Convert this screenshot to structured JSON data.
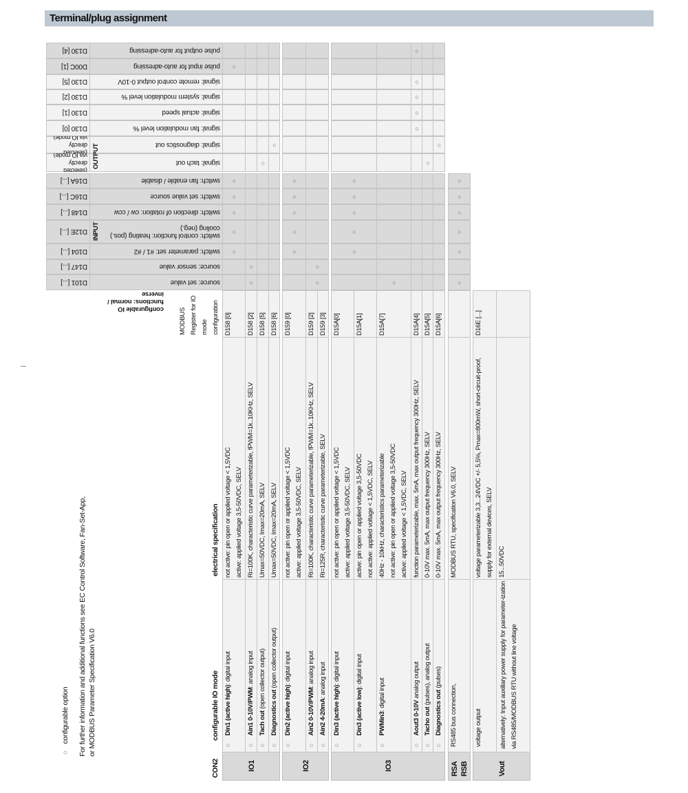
{
  "title": "Terminal/plug assignment",
  "legend": {
    "option_symbol": "○",
    "option_text": "configurable  option",
    "info_lines": [
      "For further information and additional functions see EC Control Software, Fan-Set-App,",
      "or MODBUS Parameter Specification V6.0"
    ]
  },
  "colors": {
    "title_bar": "#bdc8d3",
    "header_gray": "#d9d9d9",
    "cell_light": "#f2f2f2"
  },
  "upper": {
    "functions_header": [
      "configurable IO",
      "functions: normal /",
      "inverse"
    ],
    "output_label": "OUTPUT",
    "input_label": "INPUT",
    "rows": [
      {
        "register": "D130 [4]",
        "label": "pulse output for auto-adressing",
        "shade": "dark",
        "marks": [
          "aout3"
        ]
      },
      {
        "register": "D00C [1]",
        "label": "pulse input for auto-adressing",
        "shade": "dark",
        "marks": [
          "din1"
        ]
      },
      {
        "register": "D130 [5]",
        "label": "signal: remote control output 0-10V",
        "shade": "light",
        "marks": [
          "aout3"
        ]
      },
      {
        "register": "D130 [2]",
        "label": "signal: system modulation level %",
        "shade": "light",
        "marks": [
          "aout3"
        ]
      },
      {
        "register": "D130 [1]",
        "label": "signal: actual speed",
        "shade": "light",
        "marks": [
          "aout3"
        ]
      },
      {
        "register": "D130 [0]",
        "label": "signal: fan modulation level %",
        "shade": "light",
        "marks": [
          "aout3"
        ]
      },
      {
        "register": "(selected directly via IO mode)",
        "label": "signal: diagnostics out",
        "shade": "light",
        "marks": [
          "diag1",
          "diag3"
        ]
      },
      {
        "register": "(selected directly via IO mode)",
        "label": "signal: tach out",
        "shade": "light",
        "marks": [
          "tach1",
          "tacho3"
        ]
      },
      {
        "register": "D16A [...]",
        "label": "switch: fan enable / disable",
        "shade": "dark",
        "marks": [
          "din1",
          "din2",
          "din3",
          "rs485"
        ]
      },
      {
        "register": "D16C [...]",
        "label": "switch: set value source",
        "shade": "dark",
        "marks": [
          "din1",
          "din2",
          "din3",
          "rs485"
        ]
      },
      {
        "register": "D148 [...]",
        "label": "switch: direction of rotation: cw / ccw",
        "shade": "dark",
        "marks": [
          "din1",
          "din2",
          "din3",
          "rs485"
        ]
      },
      {
        "register": "D12E [...]",
        "label": "switch: control function: heating (pos.) cooling (neg.)",
        "shade": "dark",
        "marks": [
          "din1",
          "din2",
          "din3",
          "rs485"
        ]
      },
      {
        "register": "D104 [...]",
        "label": "switch: parameter set: #1 / #2",
        "shade": "dark",
        "marks": [
          "din1",
          "din2",
          "din3",
          "rs485"
        ]
      },
      {
        "register": "D147 [...]",
        "label": "source: sensor value",
        "shade": "dark",
        "marks": [
          "ain1",
          "ain2"
        ]
      },
      {
        "register": "D101 [...]",
        "label": "source: set value",
        "shade": "dark",
        "marks": [
          "ain1",
          "ain2",
          "pwmin3",
          "rs485"
        ]
      }
    ]
  },
  "lower": {
    "connector": "CON2",
    "mode_header": "configurable IO mode",
    "spec_header": "electrical specification",
    "register_header": [
      "MODBUS",
      "Register for IO",
      "mode",
      "configuration"
    ],
    "groups": [
      {
        "label": "IO1",
        "columns": [
          {
            "bullet": "○",
            "mode_bold": "Din1 (active high)",
            "mode_rest": ": digital input",
            "spec": [
              "not active: pin open or applied voltage < 1,5VDC",
              "active: applied voltage 3,5-50VDC, SELV"
            ],
            "register": "D158 [0]"
          },
          {
            "bullet": "○",
            "mode_bold": "Ain1 0-10V/PWM",
            "mode_rest": ": analog input",
            "spec": [
              "Ri=100K, characteristic curve parameterizable, fPWM=1k..10KHz, SELV"
            ],
            "register": "D158 [2]"
          },
          {
            "bullet": "○",
            "mode_bold": "Tach out",
            "mode_rest": " (open collector output)",
            "spec": [
              "Umax=50VDC, Imax=20mA, SELV"
            ],
            "register": "D158 [5]"
          },
          {
            "bullet": "○",
            "mode_bold": "Diagnostics out",
            "mode_rest": " (open collector output)",
            "spec": [
              "Umax=50VDC, Imax=20mA, SELV"
            ],
            "register": "D158 [6]"
          }
        ]
      },
      {
        "label": "IO2",
        "columns": [
          {
            "bullet": "○",
            "mode_bold": "Din2 (active high)",
            "mode_rest": ": digital input",
            "spec": [
              "not active: pin open or applied voltage < 1,5VDC",
              "active: applied voltage 3,5-50VDC, SELV"
            ],
            "register": "D159 [0]"
          },
          {
            "bullet": "○",
            "mode_bold": "Ain2 0-10V/PWM",
            "mode_rest": ": analog input",
            "spec": [
              "Ri=100K, characteristic curve parameterizable, fPWM=1k..10KHz, SELV"
            ],
            "register": "D159 [2]"
          },
          {
            "bullet": "○",
            "mode_bold": "Ain2 4-20mA",
            "mode_rest": ": analog input",
            "spec": [
              "Ri=125R, characteristic curve parameterizable, SELV"
            ],
            "register": "D159 [3]"
          }
        ]
      },
      {
        "label": "IO3",
        "columns": [
          {
            "bullet": "○",
            "mode_bold": "Din3 (active high)",
            "mode_rest": ": digital input",
            "spec": [
              "not active: pin open or applied voltage < 1,5VDC",
              "active: applied voltage 3,5-50VDC, SELV"
            ],
            "register": "D15A[0]"
          },
          {
            "bullet": "○",
            "mode_bold": "Din3 (active low)",
            "mode_rest": ": digital input",
            "spec": [
              "active: pin open or applied voltage 3,5-50VDC",
              "not active: applied voltage < 1,5VDC, SELV"
            ],
            "register": "D15A[1]"
          },
          {
            "bullet": "○",
            "mode_bold": "PWMin3",
            "mode_rest": ": digital input",
            "spec": [
              "40Hz - 10kHz, characteristics parameterizable",
              "not active: pin open or applied voltage 3,5-50VDC",
              "active: applied voltage < 1,5VDC, SELV"
            ],
            "register": "D15A[7]"
          },
          {
            "bullet": "○",
            "mode_bold": "Aout3 0-10V",
            "mode_rest": " analog output",
            "spec": [
              "function parameterizable, max. 5mA, max output frequency 300Hz, SELV"
            ],
            "register": "D15A[4]"
          },
          {
            "bullet": "○",
            "mode_bold": "Tacho out",
            "mode_rest": " (pulses), analog output",
            "spec": [
              "0-10V max. 5mA, max output frequency 300Hz, SELV"
            ],
            "register": "D15A[5]"
          },
          {
            "bullet": "○",
            "mode_bold": "Diagnostics out",
            "mode_rest": " (pulses)",
            "spec": [
              "0-10V max. 5mA, max output frequency 300Hz, SELV"
            ],
            "register": "D15A[6]"
          }
        ]
      },
      {
        "label": "RSA\nRSB",
        "columns": [
          {
            "bullet": "",
            "mode_bold": "",
            "mode_rest": "RS485 bus connection,",
            "spec": [
              "MODBUS RTU, specification V6.0, SELV"
            ],
            "register": ""
          }
        ]
      },
      {
        "label": "Vout",
        "columns": [
          {
            "bullet": "",
            "mode_bold": "",
            "mode_rest": "voltage output",
            "spec": [
              "voltage parameterizable 3,3...24VDC +/- 5,5%, Pmax=800mW,  short-circuit-proof,",
              "supply for external devices, SELV"
            ],
            "register": "D16E [...]"
          },
          {
            "bullet": "",
            "mode_bold": "",
            "mode_rest": "alternatively:  Input auxillary power supply for parameter-ization via RS485/MODBUS RTU without line voltage",
            "spec": [
              "15...50VDC"
            ],
            "register": ""
          }
        ]
      }
    ]
  }
}
